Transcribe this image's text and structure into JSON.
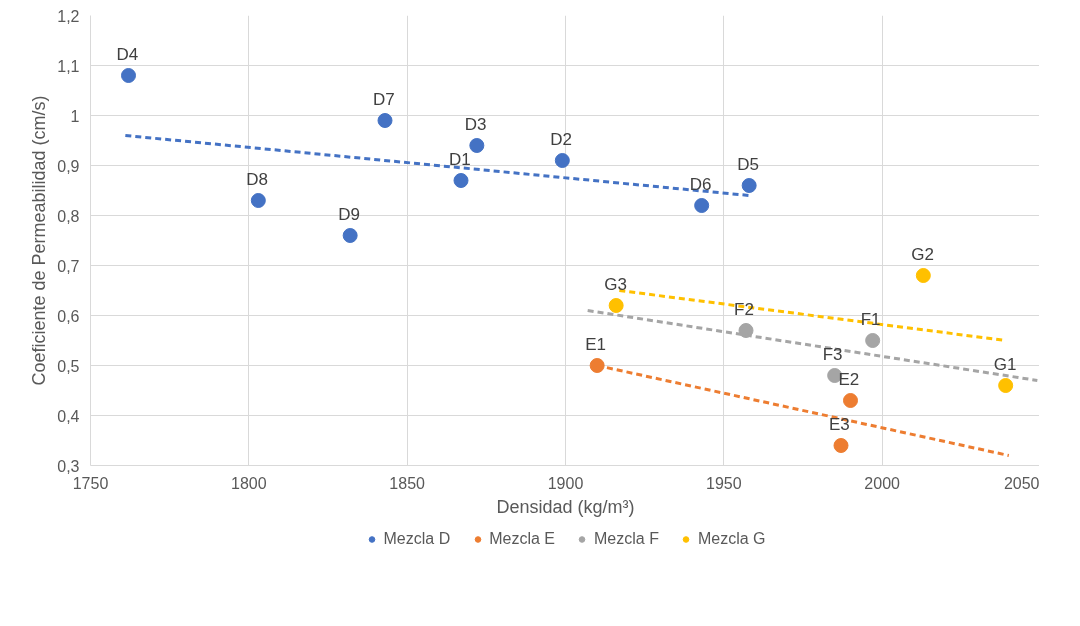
{
  "chart_data": {
    "type": "scatter",
    "xlabel": "Densidad (kg/m³)",
    "ylabel": "Coeficiente de Permeabilidad (cm/s)",
    "xlim": [
      1750,
      2050
    ],
    "xticks": [
      1750,
      1800,
      1850,
      1900,
      1950,
      2000,
      2050
    ],
    "ylim": [
      0.3,
      1.2
    ],
    "yticks": [
      {
        "value": 0.3,
        "label": "0,3"
      },
      {
        "value": 0.4,
        "label": "0,4"
      },
      {
        "value": 0.5,
        "label": "0,5"
      },
      {
        "value": 0.6,
        "label": "0,6"
      },
      {
        "value": 0.7,
        "label": "0,7"
      },
      {
        "value": 0.8,
        "label": "0,8"
      },
      {
        "value": 0.9,
        "label": "0,9"
      },
      {
        "value": 1.0,
        "label": "1"
      },
      {
        "value": 1.1,
        "label": "1,1"
      },
      {
        "value": 1.2,
        "label": "1,2"
      }
    ],
    "grid": true,
    "legend": "bottom",
    "marker": "circle",
    "series": [
      {
        "name": "Mezcla D",
        "color": "#4472c4",
        "x": [
          1762,
          1803,
          1832,
          1843,
          1867,
          1872,
          1899,
          1943,
          1958
        ],
        "values": [
          1.08,
          0.83,
          0.76,
          0.99,
          0.87,
          0.94,
          0.91,
          0.82,
          0.86
        ]
      },
      {
        "name": "Mezcla E",
        "color": "#ed7d31",
        "x": [
          1910,
          1990,
          1987
        ],
        "values": [
          0.5,
          0.43,
          0.34
        ]
      },
      {
        "name": "Mezcla F",
        "color": "#a5a5a5",
        "x": [
          1997,
          1957,
          1985
        ],
        "values": [
          0.55,
          0.57,
          0.48
        ]
      },
      {
        "name": "Mezcla G",
        "color": "#ffc000",
        "x": [
          2039,
          2013,
          1916
        ],
        "values": [
          0.46,
          0.68,
          0.62
        ]
      },
      {
        "type": "line",
        "marker": "none",
        "line_style": "dashed",
        "color": "#4472c4",
        "x": [
          1761,
          1958
        ],
        "values": [
          0.96,
          0.84
        ]
      },
      {
        "type": "line",
        "marker": "none",
        "line_style": "dashed",
        "color": "#ed7d31",
        "x": [
          1910,
          2040
        ],
        "values": [
          0.5,
          0.32
        ]
      },
      {
        "type": "line",
        "marker": "none",
        "line_style": "dashed",
        "color": "#a5a5a5",
        "x": [
          1907,
          2049
        ],
        "values": [
          0.61,
          0.47
        ]
      },
      {
        "type": "line",
        "marker": "none",
        "line_style": "dashed",
        "color": "#ffc000",
        "x": [
          1917,
          2039
        ],
        "values": [
          0.65,
          0.55
        ]
      }
    ],
    "annotations": [
      {
        "text": "D4",
        "x": 1762,
        "y": 1.08
      },
      {
        "text": "D8",
        "x": 1803,
        "y": 0.83
      },
      {
        "text": "D9",
        "x": 1832,
        "y": 0.76
      },
      {
        "text": "D7",
        "x": 1843,
        "y": 0.99
      },
      {
        "text": "D1",
        "x": 1867,
        "y": 0.87
      },
      {
        "text": "D3",
        "x": 1872,
        "y": 0.94
      },
      {
        "text": "D2",
        "x": 1899,
        "y": 0.91
      },
      {
        "text": "D6",
        "x": 1943,
        "y": 0.82
      },
      {
        "text": "D5",
        "x": 1958,
        "y": 0.86
      },
      {
        "text": "E1",
        "x": 1910,
        "y": 0.5
      },
      {
        "text": "E2",
        "x": 1990,
        "y": 0.43
      },
      {
        "text": "E3",
        "x": 1987,
        "y": 0.34
      },
      {
        "text": "F1",
        "x": 1997,
        "y": 0.55
      },
      {
        "text": "F2",
        "x": 1957,
        "y": 0.57
      },
      {
        "text": "F3",
        "x": 1985,
        "y": 0.48
      },
      {
        "text": "G1",
        "x": 2039,
        "y": 0.46
      },
      {
        "text": "G2",
        "x": 2013,
        "y": 0.68
      },
      {
        "text": "G3",
        "x": 1916,
        "y": 0.62
      }
    ]
  }
}
